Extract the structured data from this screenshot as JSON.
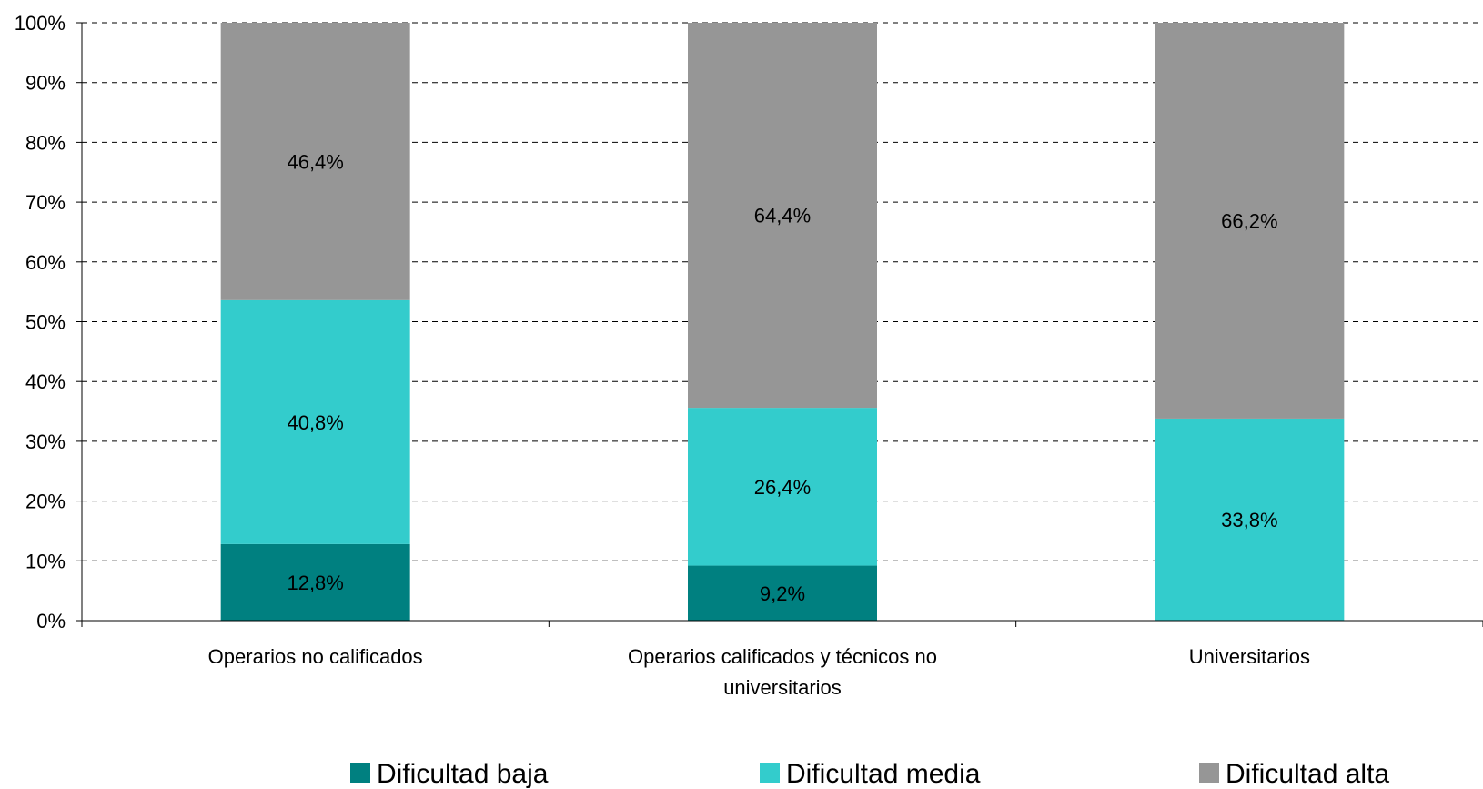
{
  "chart_data": {
    "type": "bar",
    "stacked": true,
    "title": "",
    "xlabel": "",
    "ylabel": "",
    "ylim": [
      0,
      100
    ],
    "y_ticks": [
      "0%",
      "10%",
      "20%",
      "30%",
      "40%",
      "50%",
      "60%",
      "70%",
      "80%",
      "90%",
      "100%"
    ],
    "grid": "horizontal-dashed",
    "legend_position": "bottom",
    "categories": [
      [
        "Operarios no calificados"
      ],
      [
        "Operarios calificados y técnicos no",
        "universitarios"
      ],
      [
        "Universitarios"
      ]
    ],
    "series": [
      {
        "name": "Dificultad baja",
        "color": "#008080",
        "values": [
          12.8,
          9.2,
          0
        ],
        "labels": [
          "12,8%",
          "9,2%",
          ""
        ]
      },
      {
        "name": "Dificultad media",
        "color": "#33CCCC",
        "values": [
          40.8,
          26.4,
          33.8
        ],
        "labels": [
          "40,8%",
          "26,4%",
          "33,8%"
        ]
      },
      {
        "name": "Dificultad alta",
        "color": "#969696",
        "values": [
          46.4,
          64.4,
          66.2
        ],
        "labels": [
          "46,4%",
          "64,4%",
          "66,2%"
        ]
      }
    ]
  }
}
